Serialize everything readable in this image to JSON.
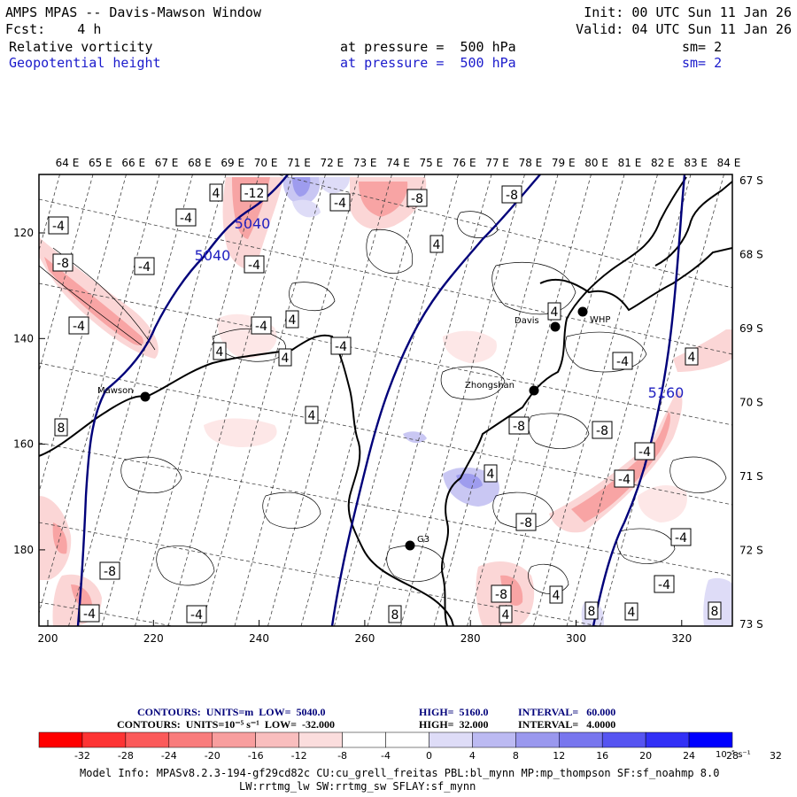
{
  "header": {
    "line1_left": "AMPS MPAS -- Davis-Mawson Window",
    "line1_right": "Init: 00 UTC Sun 11 Jan 26",
    "line2_left": "Fcst:    4 h",
    "line2_right": "Valid: 04 UTC Sun 11 Jan 26",
    "field1": {
      "name": "Relative vorticity",
      "level": "at pressure =  500 hPa",
      "sm": "sm= 2"
    },
    "field2": {
      "name": "Geopotential height",
      "level": "at pressure =  500 hPa",
      "sm": "sm= 2"
    }
  },
  "map": {
    "top_lon_labels": [
      "64 E",
      "65 E",
      "66 E",
      "67 E",
      "68 E",
      "69 E",
      "70 E",
      "71 E",
      "72 E",
      "73 E",
      "74 E",
      "75 E",
      "76 E",
      "77 E",
      "78 E",
      "79 E",
      "80 E",
      "81 E",
      "82 E",
      "83 E",
      "84 E"
    ],
    "right_lat_labels": [
      "67 S",
      "68 S",
      "69 S",
      "70 S",
      "71 S",
      "72 S",
      "73 S"
    ],
    "x_axis_ticks": [
      "200",
      "220",
      "240",
      "260",
      "280",
      "300",
      "320"
    ],
    "y_axis_ticks": [
      "120",
      "140",
      "160",
      "180"
    ],
    "stations": [
      {
        "label": "Mawson"
      },
      {
        "label": "Davis"
      },
      {
        "label": "WHP"
      },
      {
        "label": "Zhongshan"
      },
      {
        "label": "G3"
      }
    ],
    "height_contour_labels": [
      "5040",
      "5040",
      "5160"
    ],
    "vorticity_labels": [
      "-4",
      "-12",
      "-8",
      "-4",
      "4",
      "-4",
      "-8",
      "4",
      "-8",
      "-4",
      "-4",
      "-4",
      "4",
      "-4",
      "4",
      "-4",
      "4",
      "-4",
      "4",
      "4",
      "4",
      "-8",
      "-8",
      "-4",
      "4",
      "-4",
      "8",
      "-8",
      "-4",
      "-8",
      "4",
      "-4",
      "-4",
      "8",
      "-8",
      "4",
      "4",
      "8",
      "-4",
      "8"
    ]
  },
  "contours_info": {
    "line1": {
      "label": "CONTOURS:  UNITS=m  LOW=  5040.0",
      "high": "HIGH=  5160.0",
      "interval": "INTERVAL=   60.000"
    },
    "line2": {
      "label": "CONTOURS:  UNITS=10⁻⁵ s⁻¹  LOW=  -32.000",
      "high": "HIGH=  32.000",
      "interval": "INTERVAL=   4.0000"
    }
  },
  "colorbar": {
    "colors": [
      "#ff0000",
      "#fd3434",
      "#fb5a5a",
      "#f97c7c",
      "#f89e9e",
      "#f9bebe",
      "#fbdddd",
      "#ffffff",
      "#ffffff",
      "#dedcf7",
      "#bcbaf2",
      "#9a98ee",
      "#7876ee",
      "#5654f1",
      "#3230f6",
      "#0000ff"
    ],
    "labels": [
      "-32",
      "-28",
      "-24",
      "-20",
      "-16",
      "-12",
      "-8",
      "-4",
      "0",
      "4",
      "8",
      "12",
      "16",
      "20",
      "24",
      "28",
      "32"
    ],
    "units": "10⁻⁵ s⁻¹"
  },
  "model_info": {
    "line1": "Model Info: MPASv8.2.3-194-gf29cd82c CU:cu_grell_freitas PBL:bl_mynn MP:mp_thompson SF:sf_noahmp 8.0",
    "line2": "LW:rrtmg_lw SW:rrtmg_sw SFLAY:sf_mynn"
  }
}
